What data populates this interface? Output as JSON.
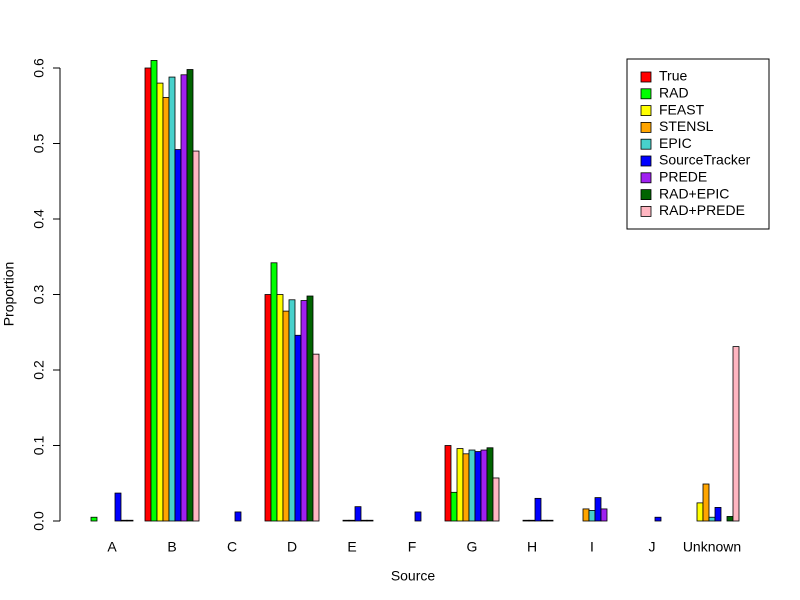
{
  "chart_data": {
    "type": "grouped-bar",
    "x_label": "Source",
    "y_label": "Proportion",
    "categories": [
      "A",
      "B",
      "C",
      "D",
      "E",
      "F",
      "G",
      "H",
      "I",
      "J",
      "Unknown"
    ],
    "series": [
      {
        "name": "True",
        "color": "#ff0000",
        "values": [
          0,
          0.6,
          0,
          0.3,
          0,
          0,
          0.1,
          0,
          0,
          0,
          0
        ]
      },
      {
        "name": "RAD",
        "color": "#00ff00",
        "values": [
          0.005,
          0.61,
          0,
          0.342,
          0,
          0,
          0.038,
          0,
          0,
          0,
          0
        ]
      },
      {
        "name": "FEAST",
        "color": "#ffff00",
        "values": [
          0,
          0.58,
          0,
          0.3,
          0,
          0,
          0.096,
          0,
          0,
          0,
          0.024
        ]
      },
      {
        "name": "STENSL",
        "color": "#ffa500",
        "values": [
          0,
          0.561,
          0,
          0.278,
          0.001,
          0,
          0.089,
          0.001,
          0.016,
          0,
          0.049
        ]
      },
      {
        "name": "EPIC",
        "color": "#48d1cc",
        "values": [
          0,
          0.588,
          0,
          0.293,
          0.001,
          0,
          0.094,
          0.001,
          0.014,
          0,
          0.005
        ]
      },
      {
        "name": "SourceTracker",
        "color": "#0000ff",
        "values": [
          0.037,
          0.492,
          0.012,
          0.246,
          0.019,
          0.012,
          0.092,
          0.03,
          0.031,
          0.005,
          0.018
        ]
      },
      {
        "name": "PREDE",
        "color": "#a020f0",
        "values": [
          0.001,
          0.591,
          0,
          0.292,
          0.001,
          0,
          0.094,
          0.001,
          0.016,
          0,
          0
        ]
      },
      {
        "name": "RAD+EPIC",
        "color": "#006400",
        "values": [
          0.001,
          0.598,
          0,
          0.298,
          0.001,
          0,
          0.097,
          0.001,
          0,
          0,
          0.006
        ]
      },
      {
        "name": "RAD+PREDE",
        "color": "#ffb6c1",
        "values": [
          0,
          0.49,
          0,
          0.221,
          0,
          0,
          0.057,
          0,
          0,
          0,
          0.231
        ]
      }
    ],
    "ylim": [
      0,
      0.6
    ],
    "yticks": [
      {
        "value": 0,
        "label": "0.0"
      },
      0.1,
      0.2,
      0.3,
      0.4,
      0.5,
      0.6
    ],
    "legend_position": "top-right"
  }
}
